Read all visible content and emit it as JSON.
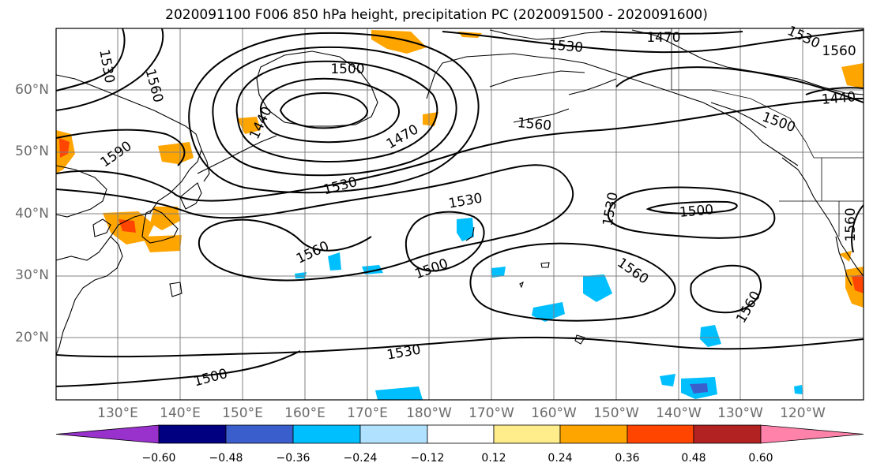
{
  "title": "2020091100 F006 850 hPa height, precipitation PC (2020091500 - 2020091600)",
  "lat_labels": [
    "60°N",
    "50°N",
    "40°N",
    "30°N",
    "20°N"
  ],
  "lon_labels": [
    "130°E",
    "140°E",
    "150°E",
    "160°E",
    "170°E",
    "180°W",
    "170°W",
    "160°W",
    "150°W",
    "140°W",
    "130°W",
    "120°W"
  ],
  "contour_labels": [
    "1530",
    "1560",
    "1500",
    "1440",
    "1470",
    "1590",
    "1530",
    "1560",
    "1470",
    "1530",
    "1560",
    "1500",
    "1530",
    "1440",
    "1500",
    "1530",
    "1560",
    "1500",
    "1560",
    "1560",
    "1560",
    "1530",
    "1500",
    "1530",
    "1560",
    "1440"
  ],
  "colorbar": {
    "tick_labels": [
      "−0.60",
      "−0.48",
      "−0.36",
      "−0.24",
      "−0.12",
      "0.12",
      "0.24",
      "0.36",
      "0.48",
      "0.60"
    ],
    "colors": [
      "#9932cc",
      "#000080",
      "#3a5fcd",
      "#00bfff",
      "#b0e2ff",
      "#ffffff",
      "#ffec8b",
      "#ffa500",
      "#ff4500",
      "#b22222",
      "#ff82ab"
    ]
  },
  "colors": {
    "positive_fill": "#ffa500",
    "negative_fill": "#00bfff",
    "grid": "#808080"
  }
}
